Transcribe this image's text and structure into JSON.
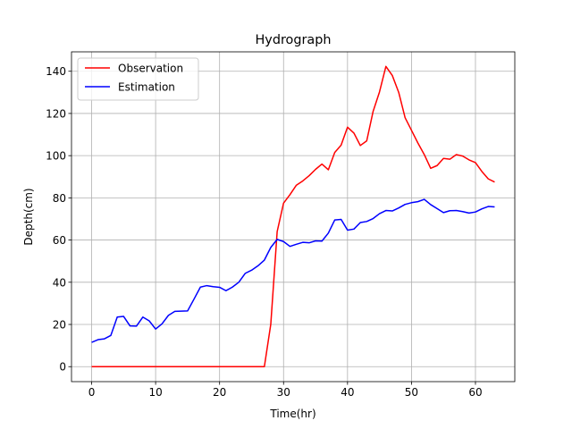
{
  "chart_data": {
    "type": "line",
    "title": "Hydrograph",
    "xlabel": "Time(hr)",
    "ylabel": "Depth(cm)",
    "xlim": [
      -3.15,
      66.15
    ],
    "ylim": [
      -7.1,
      149.2
    ],
    "xticks": [
      0,
      10,
      20,
      30,
      40,
      50,
      60
    ],
    "yticks": [
      0,
      20,
      40,
      60,
      80,
      100,
      120,
      140
    ],
    "grid": true,
    "legend_position": "upper left",
    "x": [
      0,
      1,
      2,
      3,
      4,
      5,
      6,
      7,
      8,
      9,
      10,
      11,
      12,
      13,
      14,
      15,
      16,
      17,
      18,
      19,
      20,
      21,
      22,
      23,
      24,
      25,
      26,
      27,
      28,
      29,
      30,
      31,
      32,
      33,
      34,
      35,
      36,
      37,
      38,
      39,
      40,
      41,
      42,
      43,
      44,
      45,
      46,
      47,
      48,
      49,
      50,
      51,
      52,
      53,
      54,
      55,
      56,
      57,
      58,
      59,
      60,
      61,
      62,
      63
    ],
    "series": [
      {
        "name": "Observation",
        "color": "#ff0000",
        "values": [
          0,
          0,
          0,
          0,
          0,
          0,
          0,
          0,
          0,
          0,
          0,
          0,
          0,
          0,
          0,
          0,
          0,
          0,
          0,
          0,
          0,
          0,
          0,
          0,
          0,
          0,
          0,
          0,
          20,
          64,
          77.5,
          81.5,
          86,
          88,
          90.5,
          93.5,
          96,
          93.3,
          101.5,
          105,
          113.5,
          110.7,
          104.8,
          107,
          121,
          130.2,
          142.3,
          138,
          130,
          118,
          112,
          106,
          100.5,
          94,
          95.3,
          98.7,
          98.3,
          100.5,
          99.8,
          98,
          96.7,
          92.5,
          89,
          87.5
        ]
      },
      {
        "name": "Estimation",
        "color": "#0000ff",
        "values": [
          11.5,
          12.8,
          13.2,
          14.8,
          23.5,
          23.8,
          19.3,
          19.2,
          23.5,
          21.7,
          17.8,
          20.3,
          24.3,
          26.2,
          26.3,
          26.4,
          32,
          37.7,
          38.4,
          37.9,
          37.6,
          36,
          37.7,
          40,
          44.2,
          45.7,
          47.8,
          50.5,
          56.5,
          60.3,
          59.3,
          57,
          58,
          58.9,
          58.7,
          59.6,
          59.5,
          63.3,
          69.5,
          69.8,
          64.7,
          65.2,
          68.3,
          68.8,
          70.2,
          72.5,
          74,
          73.8,
          75.2,
          76.9,
          77.7,
          78.2,
          79.3,
          76.8,
          74.9,
          73,
          73.9,
          74,
          73.5,
          72.8,
          73.3,
          74.8,
          75.9,
          75.7
        ]
      }
    ]
  }
}
